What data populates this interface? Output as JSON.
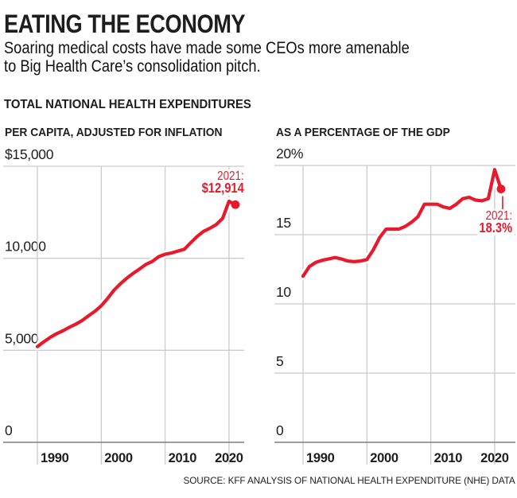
{
  "header": {
    "title": "EATING THE ECONOMY",
    "subtitle_line1": "Soaring medical costs have made some CEOs more amenable",
    "subtitle_line2": "to Big Health Care’s consolidation pitch.",
    "section_label": "TOTAL NATIONAL HEALTH EXPENDITURES"
  },
  "source": "SOURCE: KFF ANALYSIS OF NATIONAL HEALTH EXPENDITURE (NHE) DATA",
  "colors": {
    "accent_red": "#e8192b",
    "gridline": "#cbcbcb",
    "axis_line": "#7d7d7d",
    "text": "#1d1d1d"
  },
  "chart_data": [
    {
      "type": "line",
      "title": "PER CAPITA, ADJUSTED FOR INFLATION",
      "years": [
        1990,
        1991,
        1992,
        1993,
        1994,
        1995,
        1996,
        1997,
        1998,
        1999,
        2000,
        2001,
        2002,
        2003,
        2004,
        2005,
        2006,
        2007,
        2008,
        2009,
        2010,
        2011,
        2012,
        2013,
        2014,
        2015,
        2016,
        2017,
        2018,
        2019,
        2020,
        2021
      ],
      "values": [
        5200,
        5460,
        5700,
        5900,
        6060,
        6250,
        6420,
        6620,
        6870,
        7120,
        7420,
        7820,
        8270,
        8620,
        8920,
        9180,
        9420,
        9670,
        9830,
        10090,
        10220,
        10290,
        10390,
        10490,
        10840,
        11180,
        11460,
        11630,
        11830,
        12170,
        13100,
        12914
      ],
      "ylim": [
        0,
        15000
      ],
      "yticks": [
        {
          "value": 15000,
          "label": "$15,000"
        },
        {
          "value": 10000,
          "label": "10,000"
        },
        {
          "value": 5000,
          "label": "5,000"
        },
        {
          "value": 0,
          "label": "0"
        }
      ],
      "xticks": [
        {
          "value": 1990,
          "label": "1990"
        },
        {
          "value": 2000,
          "label": "2000"
        },
        {
          "value": 2010,
          "label": "2010"
        },
        {
          "value": 2020,
          "label": "2020"
        }
      ],
      "grid": true,
      "legend": "none",
      "annotation": {
        "line1": "2021:",
        "line2": "$12,914",
        "year": 2021,
        "value": 12914
      }
    },
    {
      "type": "line",
      "title": "AS A PERCENTAGE OF THE GDP",
      "years": [
        1990,
        1991,
        1992,
        1993,
        1994,
        1995,
        1996,
        1997,
        1998,
        1999,
        2000,
        2001,
        2002,
        2003,
        2004,
        2005,
        2006,
        2007,
        2008,
        2009,
        2010,
        2011,
        2012,
        2013,
        2014,
        2015,
        2016,
        2017,
        2018,
        2019,
        2020,
        2021
      ],
      "values": [
        12.0,
        12.7,
        13.0,
        13.15,
        13.25,
        13.35,
        13.25,
        13.1,
        13.05,
        13.1,
        13.2,
        13.9,
        14.8,
        15.4,
        15.4,
        15.4,
        15.6,
        15.9,
        16.3,
        17.2,
        17.2,
        17.2,
        17.0,
        16.9,
        17.2,
        17.6,
        17.7,
        17.5,
        17.45,
        17.6,
        19.7,
        18.3
      ],
      "ylim": [
        0,
        20
      ],
      "yticks": [
        {
          "value": 20,
          "label": "20%"
        },
        {
          "value": 15,
          "label": "15"
        },
        {
          "value": 10,
          "label": "10"
        },
        {
          "value": 5,
          "label": "5"
        },
        {
          "value": 0,
          "label": "0"
        }
      ],
      "xticks": [
        {
          "value": 1990,
          "label": "1990"
        },
        {
          "value": 2000,
          "label": "2000"
        },
        {
          "value": 2010,
          "label": "2010"
        },
        {
          "value": 2020,
          "label": "2020"
        }
      ],
      "grid": true,
      "legend": "none",
      "annotation": {
        "line1": "2021:",
        "line2": "18.3%",
        "year": 2021,
        "value": 18.3,
        "connector": true
      }
    }
  ]
}
